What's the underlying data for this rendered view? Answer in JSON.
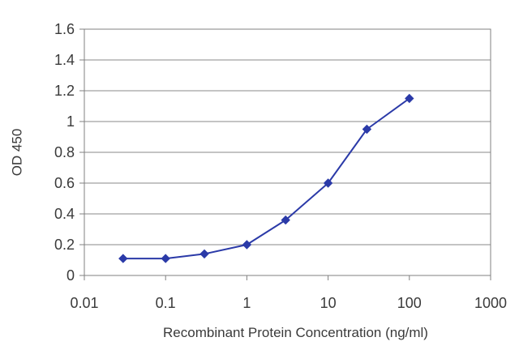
{
  "chart_data": {
    "type": "line",
    "title": "",
    "xlabel": "Recombinant Protein Concentration (ng/ml)",
    "ylabel": "OD 450",
    "xscale": "log",
    "xlim": [
      0.01,
      1000
    ],
    "ylim": [
      0,
      1.6
    ],
    "x_ticks": [
      "0.01",
      "0.1",
      "1",
      "10",
      "100",
      "1000"
    ],
    "y_ticks": [
      "0",
      "0.2",
      "0.4",
      "0.6",
      "0.8",
      "1",
      "1.2",
      "1.4",
      "1.6"
    ],
    "grid": "horizontal",
    "legend": "none",
    "series": [
      {
        "x": [
          0.03,
          0.1,
          0.3,
          1,
          3,
          10,
          30,
          100
        ],
        "y": [
          0.11,
          0.11,
          0.14,
          0.2,
          0.36,
          0.6,
          0.95,
          1.15
        ],
        "color": "#2b3aa8"
      }
    ]
  }
}
